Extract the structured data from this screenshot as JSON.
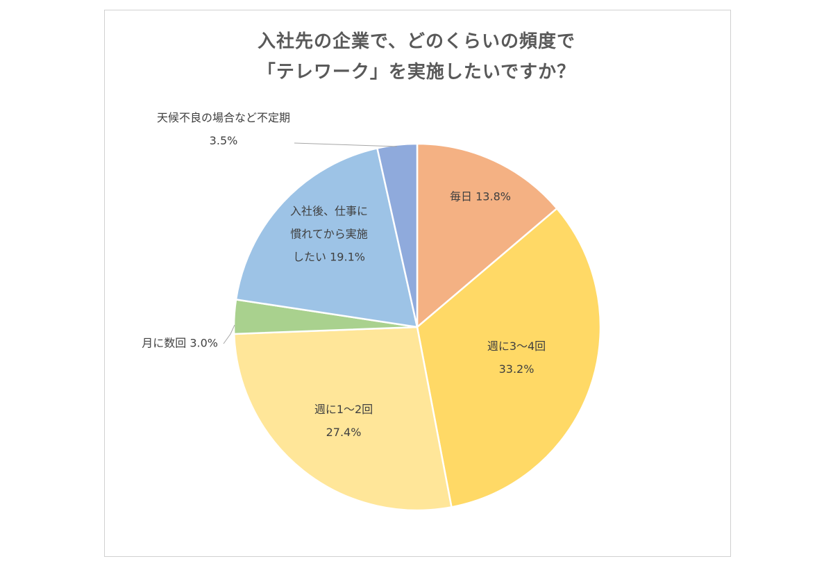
{
  "chart_data": {
    "type": "pie",
    "title_lines": [
      "入社先の企業で、どのくらいの頻度で",
      "「テレワーク」を実施したいですか？"
    ],
    "start_angle_deg": 0,
    "direction": "clockwise",
    "slices": [
      {
        "label_lines": [
          "毎日 13.8%"
        ],
        "value": 13.8,
        "color": "#F4B183"
      },
      {
        "label_lines": [
          "週に3～4回",
          "33.2%"
        ],
        "value": 33.2,
        "color": "#FFD966"
      },
      {
        "label_lines": [
          "週に1～2回",
          "27.4%"
        ],
        "value": 27.4,
        "color": "#FFE699"
      },
      {
        "label_lines": [
          "月に数回 3.0%"
        ],
        "value": 3.0,
        "color": "#A9D18E"
      },
      {
        "label_lines": [
          "入社後、仕事に",
          "慣れてから実施",
          "したい 19.1%"
        ],
        "value": 19.1,
        "color": "#9DC3E6"
      },
      {
        "label_lines": [
          "天候不良の場合など不定期",
          "3.5%"
        ],
        "value": 3.5,
        "color": "#8FAADC"
      }
    ]
  }
}
